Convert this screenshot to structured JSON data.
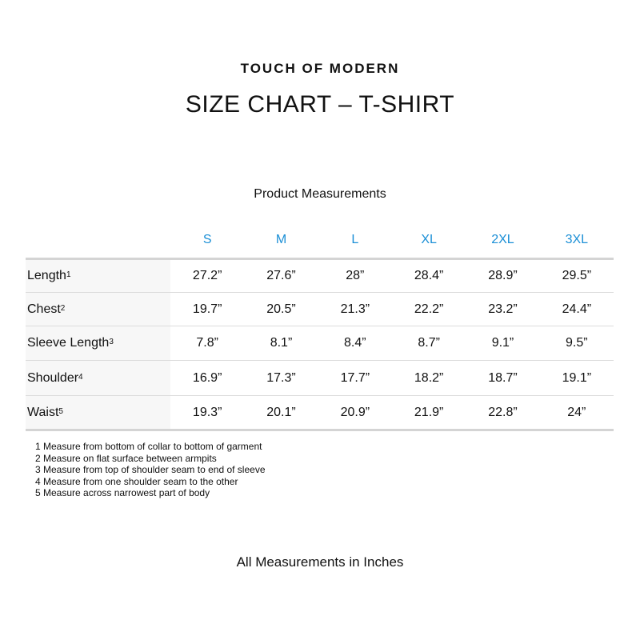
{
  "brand": "TOUCH OF MODERN",
  "title": "SIZE CHART – T-SHIRT",
  "subtitle": "Product Measurements",
  "accent_color": "#1b8fd6",
  "sizes": [
    "S",
    "M",
    "L",
    "XL",
    "2XL",
    "3XL"
  ],
  "rows": [
    {
      "label": "Length",
      "note": "1",
      "values": [
        "27.2”",
        "27.6”",
        "28”",
        "28.4”",
        "28.9”",
        "29.5”"
      ]
    },
    {
      "label": "Chest",
      "note": "2",
      "values": [
        "19.7”",
        "20.5”",
        "21.3”",
        "22.2”",
        "23.2”",
        "24.4”"
      ]
    },
    {
      "label": "Sleeve Length",
      "note": "3",
      "values": [
        "7.8”",
        "8.1”",
        "8.4”",
        "8.7”",
        "9.1”",
        "9.5”"
      ]
    },
    {
      "label": "Shoulder",
      "note": "4",
      "values": [
        "16.9”",
        "17.3”",
        "17.7”",
        "18.2”",
        "18.7”",
        "19.1”"
      ]
    },
    {
      "label": "Waist",
      "note": "5",
      "values": [
        "19.3”",
        "20.1”",
        "20.9”",
        "21.9”",
        "22.8”",
        "24”"
      ]
    }
  ],
  "notes": [
    "1 Measure from bottom of collar to bottom of garment",
    "2 Measure on flat surface between armpits",
    "3 Measure from top of shoulder seam to end of sleeve",
    "4 Measure from one shoulder seam to the other",
    "5 Measure across narrowest part of body"
  ],
  "footer": "All Measurements in Inches"
}
